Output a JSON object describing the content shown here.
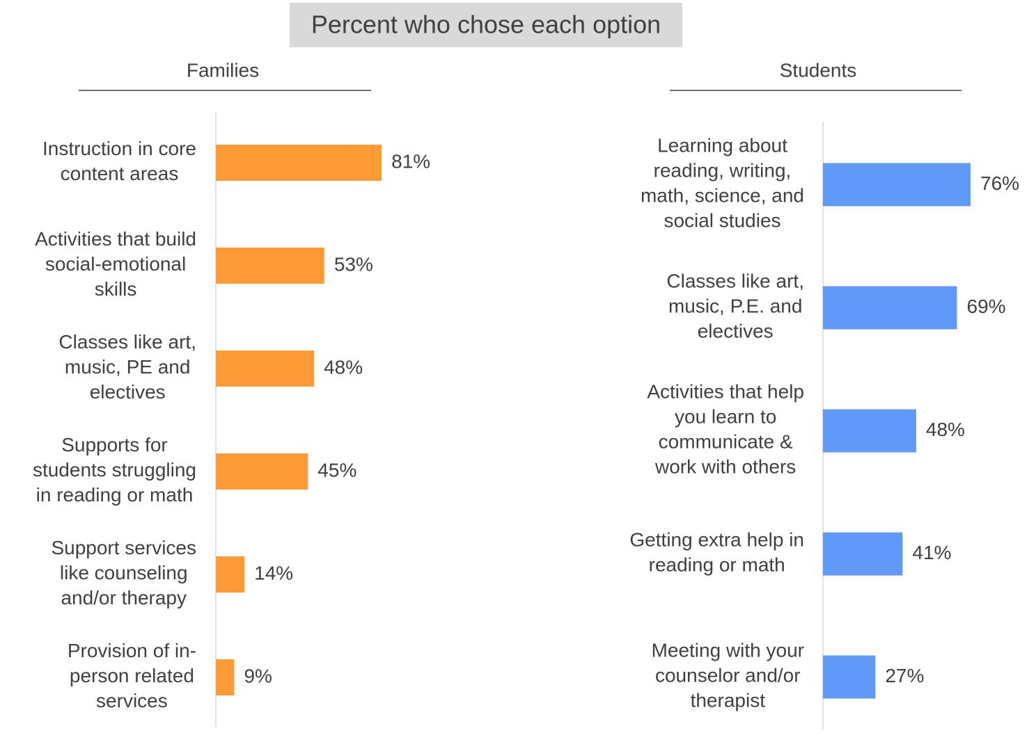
{
  "title": "Percent who chose each option",
  "chart_data": [
    {
      "type": "bar",
      "title": "Families",
      "categories": [
        "Instruction in core\ncontent areas",
        "Activities that build\nsocial-emotional\nskills",
        "Classes like art,\nmusic, PE and\nelectives",
        "Supports for\nstudents struggling\nin reading or math",
        "Support services\nlike counseling\nand/or therapy",
        "Provision of in-\nperson related\nservices"
      ],
      "values": [
        81,
        53,
        48,
        45,
        14,
        9
      ],
      "value_labels": [
        "81%",
        "53%",
        "48%",
        "45%",
        "14%",
        "9%"
      ],
      "color": "#ff9b37",
      "xlim": [
        0,
        100
      ]
    },
    {
      "type": "bar",
      "title": "Students",
      "categories": [
        "Learning about\nreading, writing,\nmath, science, and\nsocial studies",
        "Classes like art,\nmusic, P.E. and\nelectives",
        "Activities that help\nyou learn to\ncommunicate &\nwork with others",
        "Getting extra help in\nreading or math",
        "Meeting with your\ncounselor and/or\ntherapist"
      ],
      "values": [
        76,
        69,
        48,
        41,
        27
      ],
      "value_labels": [
        "76%",
        "69%",
        "48%",
        "41%",
        "27%"
      ],
      "color": "#6199f9",
      "xlim": [
        0,
        100
      ]
    }
  ]
}
